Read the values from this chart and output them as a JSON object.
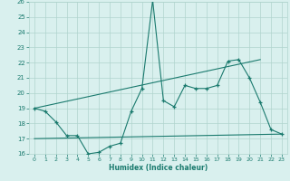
{
  "xlabel": "Humidex (Indice chaleur)",
  "x": [
    0,
    1,
    2,
    3,
    4,
    5,
    6,
    7,
    8,
    9,
    10,
    11,
    12,
    13,
    14,
    15,
    16,
    17,
    18,
    19,
    20,
    21,
    22,
    23
  ],
  "line1": [
    19.0,
    18.8,
    18.1,
    17.2,
    17.2,
    16.0,
    16.1,
    16.5,
    16.7,
    18.8,
    20.3,
    26.1,
    19.5,
    19.1,
    20.5,
    20.3,
    20.3,
    20.5,
    22.1,
    22.2,
    21.0,
    19.4,
    17.6,
    17.3
  ],
  "line_trend1_x": [
    0,
    21
  ],
  "line_trend1_y": [
    19.0,
    22.2
  ],
  "line_trend2_x": [
    0,
    23
  ],
  "line_trend2_y": [
    17.0,
    17.3
  ],
  "ylim": [
    16,
    26
  ],
  "xlim": [
    -0.5,
    23.5
  ],
  "yticks": [
    16,
    17,
    18,
    19,
    20,
    21,
    22,
    23,
    24,
    25,
    26
  ],
  "xticks": [
    0,
    1,
    2,
    3,
    4,
    5,
    6,
    7,
    8,
    9,
    10,
    11,
    12,
    13,
    14,
    15,
    16,
    17,
    18,
    19,
    20,
    21,
    22,
    23
  ],
  "line_color": "#1a7a6e",
  "bg_color": "#d9f0ee",
  "grid_color": "#b0d4ce"
}
